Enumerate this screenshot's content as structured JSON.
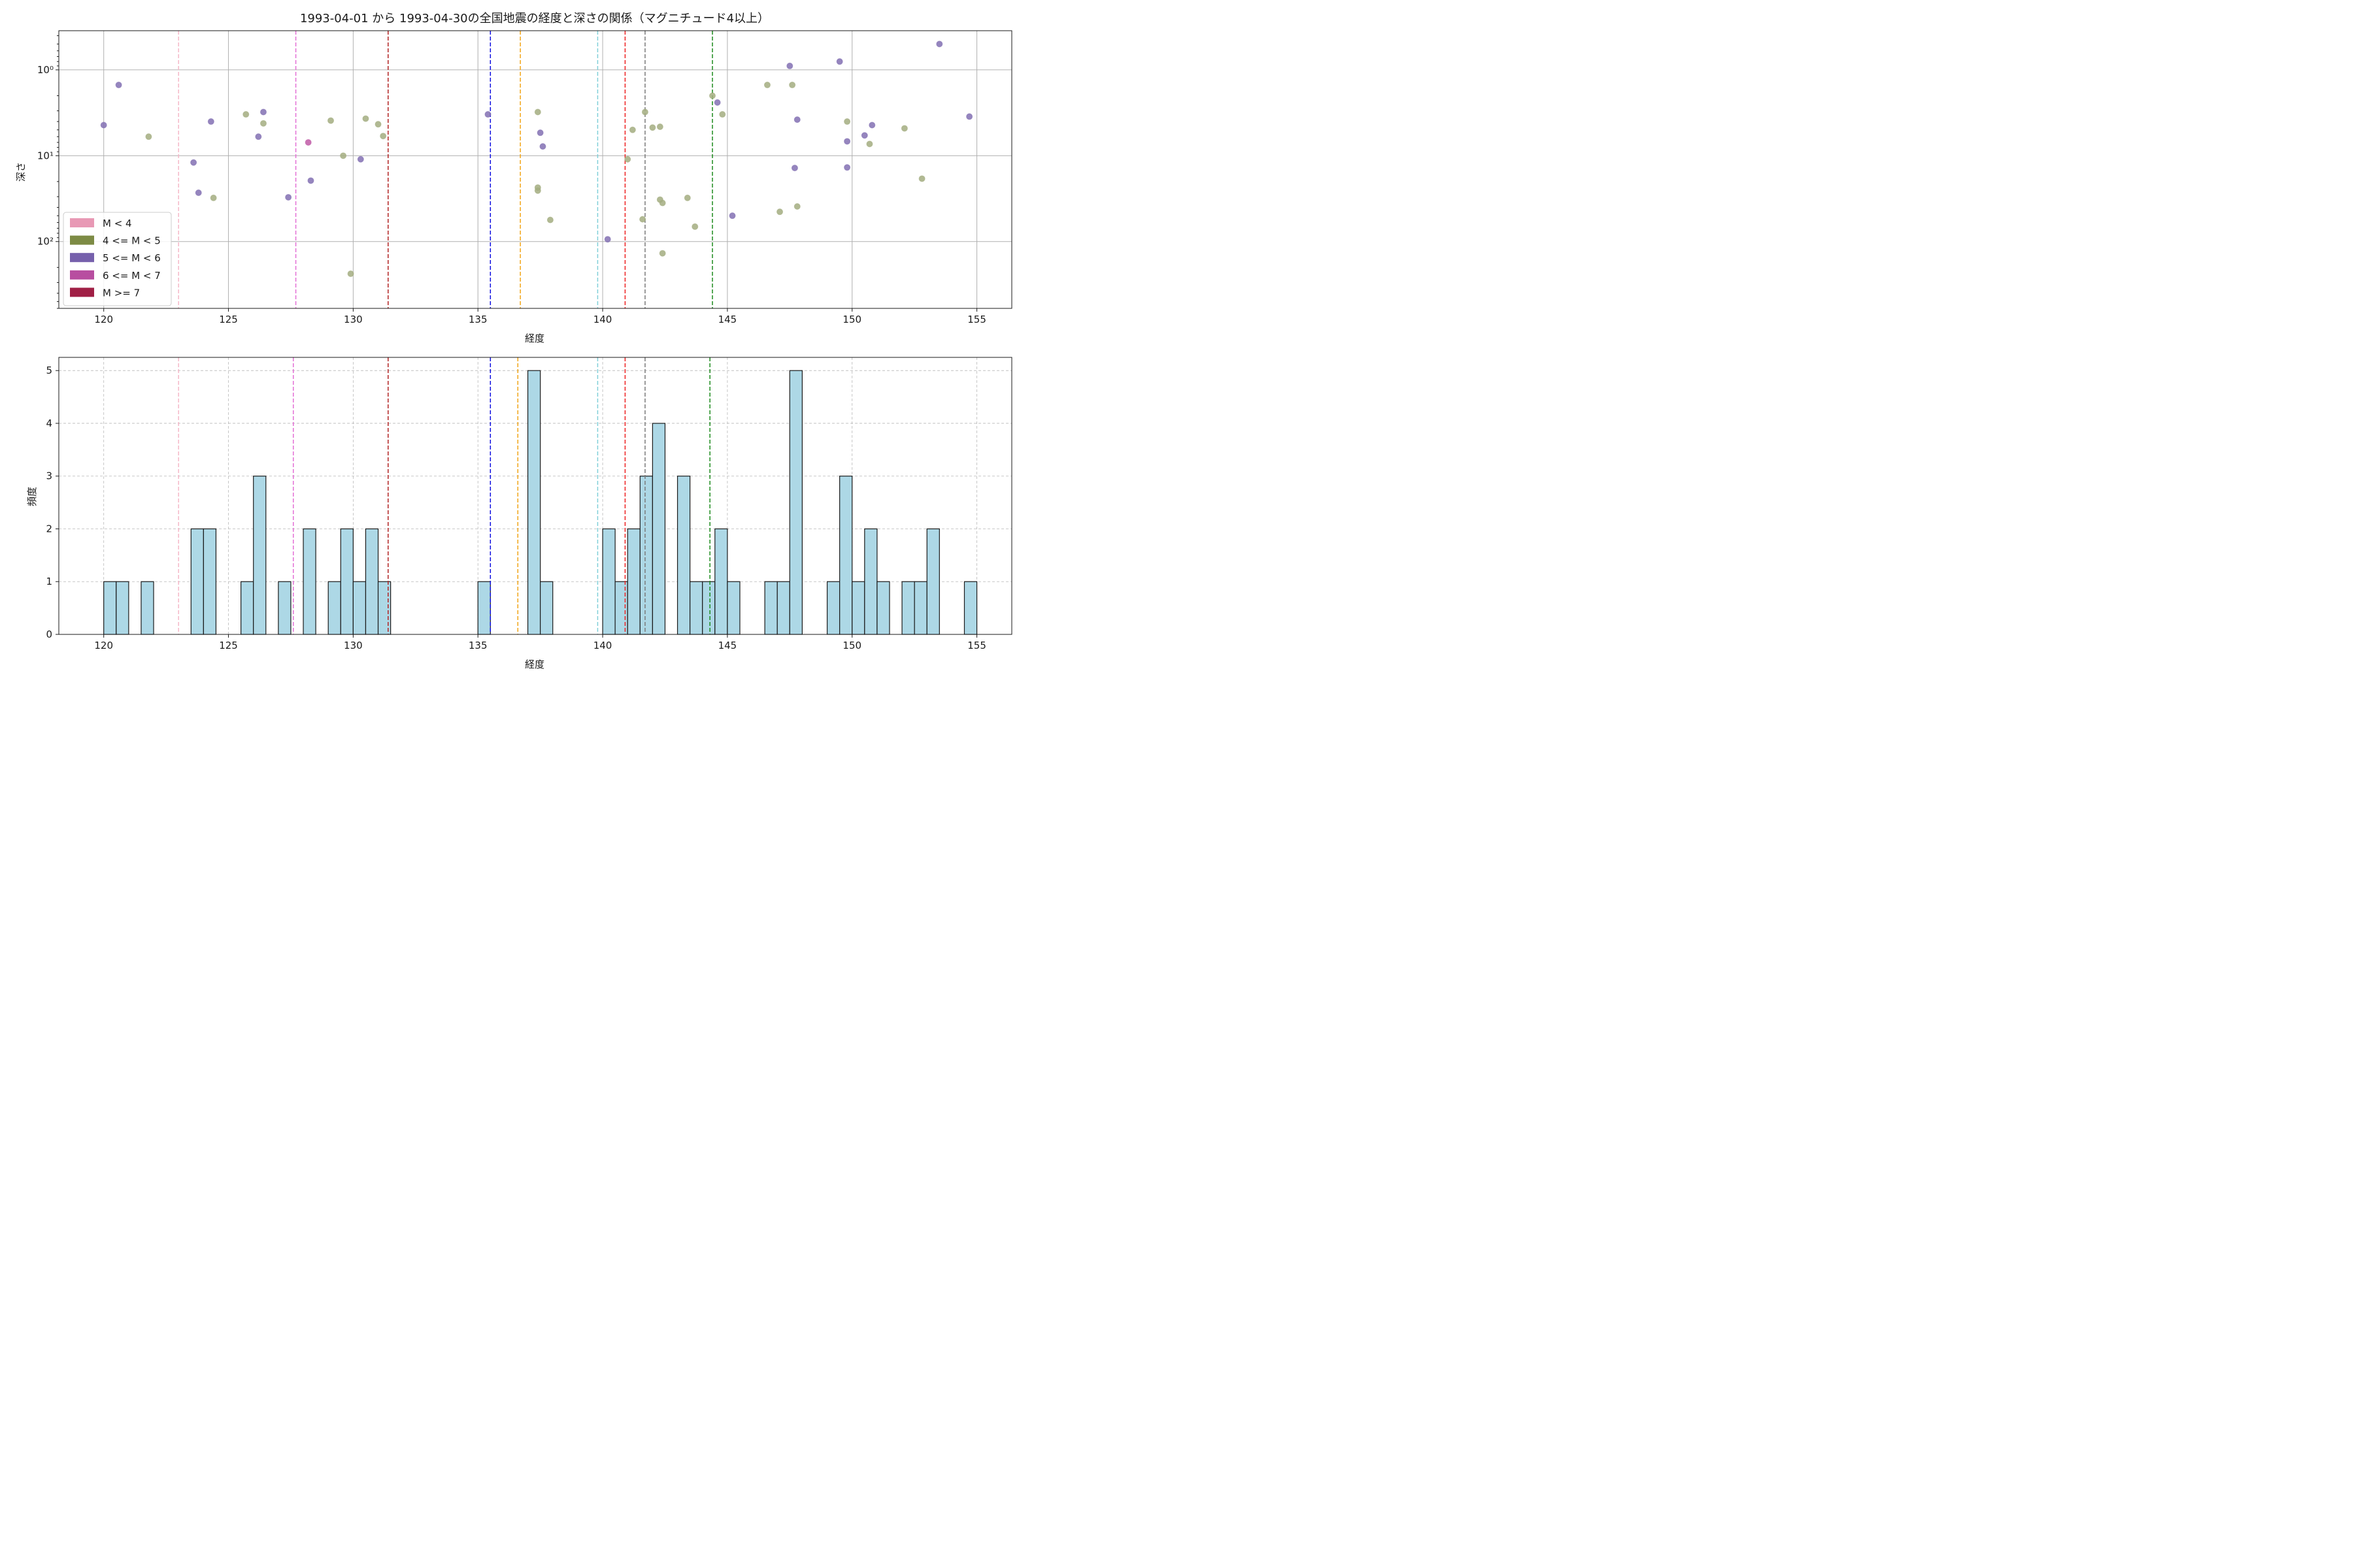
{
  "chart_data": [
    {
      "type": "scatter",
      "title": "1993-04-01 から 1993-04-30の全国地震の経度と深さの関係（マグニチュード4以上）",
      "xlabel": "経度",
      "ylabel": "深さ",
      "xlim": [
        118.2,
        156.4
      ],
      "ylim": [
        600,
        0.35
      ],
      "yscale": "log",
      "y_inverted": true,
      "grid": true,
      "xticks": [
        120,
        125,
        130,
        135,
        140,
        145,
        150,
        155
      ],
      "yticks": [
        {
          "value": 1,
          "label": "10⁰"
        },
        {
          "value": 10,
          "label": "10¹"
        },
        {
          "value": 100,
          "label": "10²"
        }
      ],
      "legend": {
        "position": "lower-left",
        "entries": [
          {
            "label": "M < 4",
            "color": "#e899b5"
          },
          {
            "label": "4 <= M < 5",
            "color": "#7d8b45"
          },
          {
            "label": "5 <= M < 6",
            "color": "#7660ac"
          },
          {
            "label": "6 <= M < 7",
            "color": "#b84ea0"
          },
          {
            "label": "M >= 7",
            "color": "#a01f45"
          }
        ]
      },
      "vlines": [
        {
          "x": 123.0,
          "color": "#f6b7c8"
        },
        {
          "x": 127.7,
          "color": "#e46fd6"
        },
        {
          "x": 131.4,
          "color": "#b22222"
        },
        {
          "x": 135.5,
          "color": "#1010e0"
        },
        {
          "x": 136.7,
          "color": "#f2a516"
        },
        {
          "x": 139.8,
          "color": "#80cfd9"
        },
        {
          "x": 140.9,
          "color": "#ee2020"
        },
        {
          "x": 141.7,
          "color": "#7a7a7a"
        },
        {
          "x": 144.4,
          "color": "#1b8a1b"
        }
      ],
      "series": [
        {
          "category": "4 <= M < 5",
          "color": "#a3ad80",
          "points": [
            [
              121.8,
              6
            ],
            [
              125.7,
              3.3
            ],
            [
              126.4,
              4.2
            ],
            [
              124.4,
              31
            ],
            [
              129.1,
              3.9
            ],
            [
              129.6,
              10
            ],
            [
              129.9,
              237
            ],
            [
              130.5,
              3.7
            ],
            [
              131.0,
              4.3
            ],
            [
              131.2,
              5.9
            ],
            [
              137.4,
              3.1
            ],
            [
              137.4,
              23.5
            ],
            [
              137.4,
              25.5
            ],
            [
              137.9,
              56
            ],
            [
              141.0,
              11
            ],
            [
              141.2,
              5
            ],
            [
              141.6,
              55
            ],
            [
              141.7,
              3.1
            ],
            [
              142.0,
              4.7
            ],
            [
              142.3,
              4.6
            ],
            [
              142.3,
              32.5
            ],
            [
              142.4,
              35.5
            ],
            [
              142.4,
              137
            ],
            [
              143.4,
              31
            ],
            [
              143.7,
              67
            ],
            [
              144.4,
              2
            ],
            [
              144.8,
              3.3
            ],
            [
              146.6,
              1.5
            ],
            [
              147.1,
              45
            ],
            [
              147.6,
              1.5
            ],
            [
              147.8,
              39
            ],
            [
              149.8,
              4
            ],
            [
              150.7,
              7.3
            ],
            [
              152.1,
              4.8
            ],
            [
              152.8,
              18.5
            ]
          ]
        },
        {
          "category": "5 <= M < 6",
          "color": "#8270b3",
          "points": [
            [
              120.0,
              4.4
            ],
            [
              120.6,
              1.5
            ],
            [
              123.6,
              12
            ],
            [
              123.8,
              27
            ],
            [
              124.3,
              4
            ],
            [
              126.2,
              6
            ],
            [
              126.4,
              3.1
            ],
            [
              127.4,
              30.5
            ],
            [
              128.3,
              19.5
            ],
            [
              130.3,
              11
            ],
            [
              135.4,
              3.3
            ],
            [
              137.5,
              5.4
            ],
            [
              137.6,
              7.8
            ],
            [
              140.2,
              94
            ],
            [
              144.6,
              2.4
            ],
            [
              145.2,
              50
            ],
            [
              147.5,
              0.9
            ],
            [
              147.7,
              13.9
            ],
            [
              147.8,
              3.8
            ],
            [
              149.5,
              0.8
            ],
            [
              149.8,
              13.7
            ],
            [
              149.8,
              6.8
            ],
            [
              150.5,
              5.8
            ],
            [
              150.8,
              4.4
            ],
            [
              153.5,
              0.5
            ],
            [
              154.7,
              3.5
            ]
          ]
        },
        {
          "category": "6 <= M < 7",
          "color": "#c05aa6",
          "points": [
            [
              128.2,
              7
            ]
          ]
        }
      ]
    },
    {
      "type": "bar",
      "subtype": "histogram",
      "xlabel": "経度",
      "ylabel": "頻度",
      "xlim": [
        118.2,
        156.4
      ],
      "ylim": [
        0,
        5.25
      ],
      "grid": true,
      "bar_color": "#add8e6",
      "edge_color": "#1a1a1a",
      "xticks": [
        120,
        125,
        130,
        135,
        140,
        145,
        150,
        155
      ],
      "yticks": [
        0,
        1,
        2,
        3,
        4,
        5
      ],
      "bin_width": 0.5,
      "bins": [
        {
          "x0": 120.0,
          "count": 1
        },
        {
          "x0": 120.5,
          "count": 1
        },
        {
          "x0": 121.5,
          "count": 1
        },
        {
          "x0": 123.5,
          "count": 2
        },
        {
          "x0": 124.0,
          "count": 2
        },
        {
          "x0": 125.5,
          "count": 1
        },
        {
          "x0": 126.0,
          "count": 3
        },
        {
          "x0": 127.0,
          "count": 1
        },
        {
          "x0": 128.0,
          "count": 2
        },
        {
          "x0": 129.0,
          "count": 1
        },
        {
          "x0": 129.5,
          "count": 2
        },
        {
          "x0": 130.0,
          "count": 1
        },
        {
          "x0": 130.5,
          "count": 2
        },
        {
          "x0": 131.0,
          "count": 1
        },
        {
          "x0": 135.0,
          "count": 1
        },
        {
          "x0": 137.0,
          "count": 5
        },
        {
          "x0": 137.5,
          "count": 1
        },
        {
          "x0": 140.0,
          "count": 2
        },
        {
          "x0": 140.5,
          "count": 1
        },
        {
          "x0": 141.0,
          "count": 2
        },
        {
          "x0": 141.5,
          "count": 3
        },
        {
          "x0": 142.0,
          "count": 4
        },
        {
          "x0": 143.0,
          "count": 3
        },
        {
          "x0": 143.5,
          "count": 1
        },
        {
          "x0": 144.0,
          "count": 1
        },
        {
          "x0": 144.5,
          "count": 2
        },
        {
          "x0": 145.0,
          "count": 1
        },
        {
          "x0": 146.5,
          "count": 1
        },
        {
          "x0": 147.0,
          "count": 1
        },
        {
          "x0": 147.5,
          "count": 5
        },
        {
          "x0": 149.0,
          "count": 1
        },
        {
          "x0": 149.5,
          "count": 3
        },
        {
          "x0": 150.0,
          "count": 1
        },
        {
          "x0": 150.5,
          "count": 2
        },
        {
          "x0": 151.0,
          "count": 1
        },
        {
          "x0": 152.0,
          "count": 1
        },
        {
          "x0": 152.5,
          "count": 1
        },
        {
          "x0": 153.0,
          "count": 2
        },
        {
          "x0": 154.5,
          "count": 1
        }
      ],
      "vlines": [
        {
          "x": 123.0,
          "color": "#f6b7c8"
        },
        {
          "x": 127.6,
          "color": "#e46fd6"
        },
        {
          "x": 131.4,
          "color": "#b22222"
        },
        {
          "x": 135.5,
          "color": "#1010e0"
        },
        {
          "x": 136.6,
          "color": "#f2a516"
        },
        {
          "x": 139.8,
          "color": "#80cfd9"
        },
        {
          "x": 140.9,
          "color": "#ee2020"
        },
        {
          "x": 141.7,
          "color": "#7a7a7a"
        },
        {
          "x": 144.3,
          "color": "#1b8a1b"
        }
      ]
    }
  ]
}
